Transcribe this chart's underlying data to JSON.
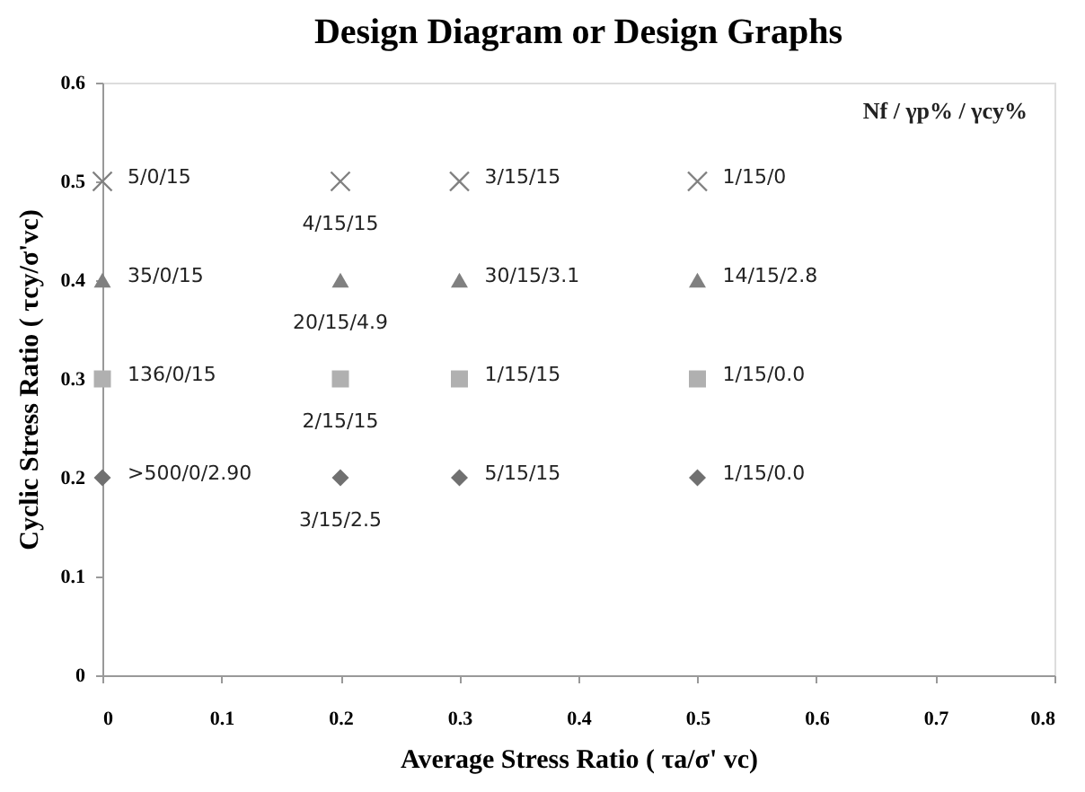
{
  "chart_data": {
    "type": "scatter",
    "title": "Design Diagram or Design Graphs",
    "xlabel": "Average Stress Ratio ( τa/σ' vc)",
    "ylabel": "Cyclic Stress Ratio ( τcy/σ'vc)",
    "x": [
      0,
      0.2,
      0.3,
      0.5
    ],
    "series": [
      {
        "color": "#808080",
        "marker": "cross",
        "values": [
          0.5,
          0.5,
          0.5,
          0.5
        ]
      },
      {
        "color": "#808080",
        "marker": "triangle",
        "values": [
          0.4,
          0.4,
          0.4,
          0.4
        ]
      },
      {
        "color": "#b0b0b0",
        "marker": "square",
        "values": [
          0.3,
          0.3,
          0.3,
          0.3
        ]
      },
      {
        "color": "#707070",
        "marker": "diamond",
        "values": [
          0.2,
          0.2,
          0.2,
          0.2
        ]
      }
    ],
    "xlim": [
      0,
      0.8
    ],
    "xticks": [
      0,
      0.1,
      0.2,
      0.3,
      0.4,
      0.5,
      0.6,
      0.7,
      0.8
    ],
    "ylim": [
      0,
      0.6
    ],
    "yticks": [
      0,
      0.1,
      0.2,
      0.3,
      0.4,
      0.5,
      0.6
    ],
    "grid": false,
    "annotations": [
      {
        "text": "5/0/15",
        "x": 0,
        "y": 0.5
      },
      {
        "text": "4/15/15",
        "x": 0.2,
        "y": 0.5
      },
      {
        "text": "3/15/15",
        "x": 0.3,
        "y": 0.5
      },
      {
        "text": "1/15/0",
        "x": 0.5,
        "y": 0.5
      },
      {
        "text": "35/0/15",
        "x": 0,
        "y": 0.4
      },
      {
        "text": "20/15/4.9",
        "x": 0.2,
        "y": 0.4
      },
      {
        "text": "30/15/3.1",
        "x": 0.3,
        "y": 0.4
      },
      {
        "text": "14/15/2.8",
        "x": 0.5,
        "y": 0.4
      },
      {
        "text": "136/0/15",
        "x": 0,
        "y": 0.3
      },
      {
        "text": "2/15/15",
        "x": 0.2,
        "y": 0.3
      },
      {
        "text": "1/15/15",
        "x": 0.3,
        "y": 0.3
      },
      {
        "text": "1/15/0.0",
        "x": 0.5,
        "y": 0.3
      },
      {
        "text": ">500/0/2.90",
        "x": 0,
        "y": 0.2
      },
      {
        "text": "3/15/2.5",
        "x": 0.2,
        "y": 0.2
      },
      {
        "text": "5/15/15",
        "x": 0.3,
        "y": 0.2
      },
      {
        "text": "1/15/0.0",
        "x": 0.5,
        "y": 0.2
      },
      "Nf / γp% / γcy%"
    ]
  }
}
